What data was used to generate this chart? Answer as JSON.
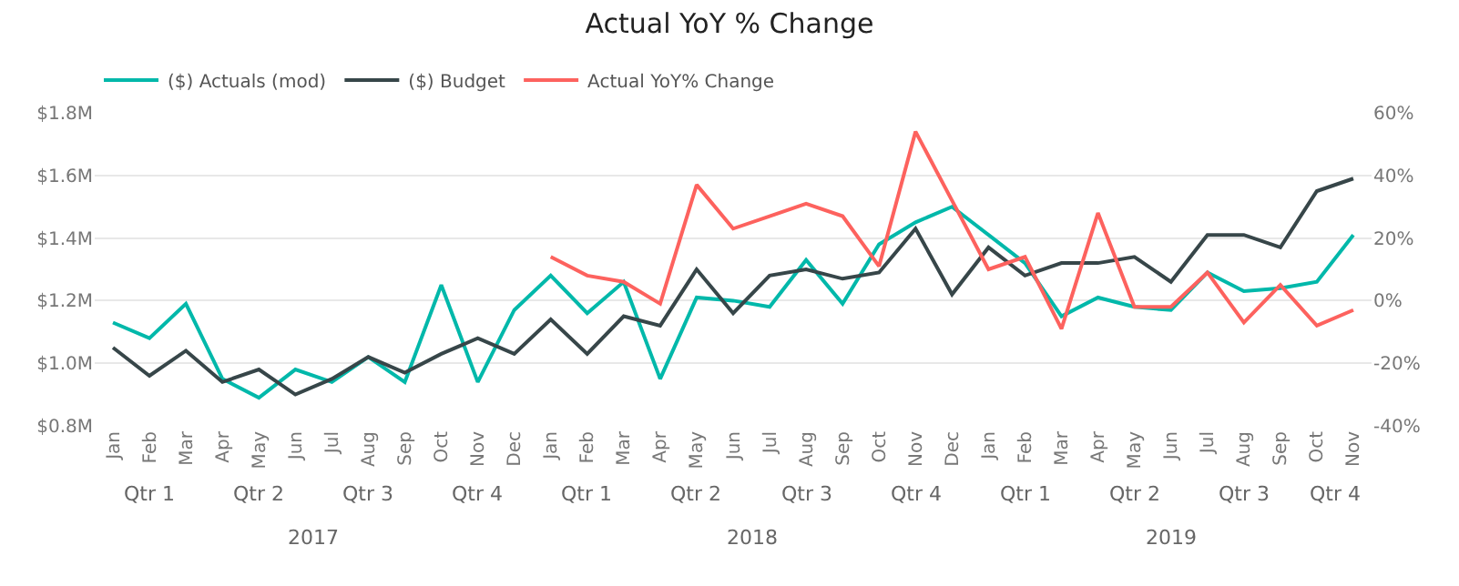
{
  "chart_data": {
    "type": "line",
    "title": "Actual YoY % Change",
    "categories": [
      "Jan",
      "Feb",
      "Mar",
      "Apr",
      "May",
      "Jun",
      "Jul",
      "Aug",
      "Sep",
      "Oct",
      "Nov",
      "Dec",
      "Jan",
      "Feb",
      "Mar",
      "Apr",
      "May",
      "Jun",
      "Jul",
      "Aug",
      "Sep",
      "Oct",
      "Nov",
      "Dec",
      "Jan",
      "Feb",
      "Mar",
      "Apr",
      "May",
      "Jun",
      "Jul",
      "Aug",
      "Sep",
      "Oct",
      "Nov"
    ],
    "series": [
      {
        "name": "($) Actuals (mod)",
        "color": "#01b8aa",
        "values": [
          1.13,
          1.08,
          1.19,
          0.95,
          0.89,
          0.98,
          0.94,
          1.02,
          0.94,
          1.25,
          0.94,
          1.17,
          1.28,
          1.16,
          1.26,
          0.95,
          1.21,
          1.2,
          1.18,
          1.33,
          1.19,
          1.38,
          1.45,
          1.5,
          1.41,
          1.32,
          1.15,
          1.21,
          1.18,
          1.17,
          1.29,
          1.23,
          1.24,
          1.26,
          1.41
        ]
      },
      {
        "name": "($) Budget",
        "color": "#374649",
        "values": [
          1.05,
          0.96,
          1.04,
          0.94,
          0.98,
          0.9,
          0.95,
          1.02,
          0.97,
          1.03,
          1.08,
          1.03,
          1.14,
          1.03,
          1.15,
          1.12,
          1.3,
          1.16,
          1.28,
          1.3,
          1.27,
          1.29,
          1.43,
          1.22,
          1.37,
          1.28,
          1.32,
          1.32,
          1.34,
          1.26,
          1.41,
          1.41,
          1.37,
          1.55,
          1.59
        ]
      },
      {
        "name": "Actual YoY% Change",
        "color": "#fd625e",
        "axis": "y2",
        "values": [
          null,
          null,
          null,
          null,
          null,
          null,
          null,
          null,
          null,
          null,
          null,
          null,
          14,
          8,
          6,
          -1,
          37,
          23,
          27,
          31,
          27,
          11,
          54,
          32,
          10,
          14,
          -9,
          28,
          -2,
          -2,
          9,
          -7,
          5,
          -8,
          -3
        ]
      }
    ],
    "ylim": [
      0.8,
      1.8
    ],
    "yticks": [
      {
        "value": 0.8,
        "label": "$0.8M"
      },
      {
        "value": 1.0,
        "label": "$1.0M"
      },
      {
        "value": 1.2,
        "label": "$1.2M"
      },
      {
        "value": 1.4,
        "label": "$1.4M"
      },
      {
        "value": 1.6,
        "label": "$1.6M"
      },
      {
        "value": 1.8,
        "label": "$1.8M"
      }
    ],
    "y2lim": [
      -40,
      60
    ],
    "y2ticks": [
      {
        "value": -40,
        "label": "-40%"
      },
      {
        "value": -20,
        "label": "-20%"
      },
      {
        "value": 0,
        "label": "0%"
      },
      {
        "value": 20,
        "label": "20%"
      },
      {
        "value": 40,
        "label": "40%"
      },
      {
        "value": 60,
        "label": "60%"
      }
    ],
    "annotations": [
      "Qtr 1",
      "Qtr 2",
      "Qtr 3",
      "Qtr 4",
      "Qtr 1",
      "Qtr 2",
      "Qtr 3",
      "Qtr 4",
      "Qtr 1",
      "Qtr 2",
      "Qtr 3",
      "Qtr 4",
      "2017",
      "2018",
      "2019"
    ],
    "grid": "y",
    "legend": "top left"
  }
}
